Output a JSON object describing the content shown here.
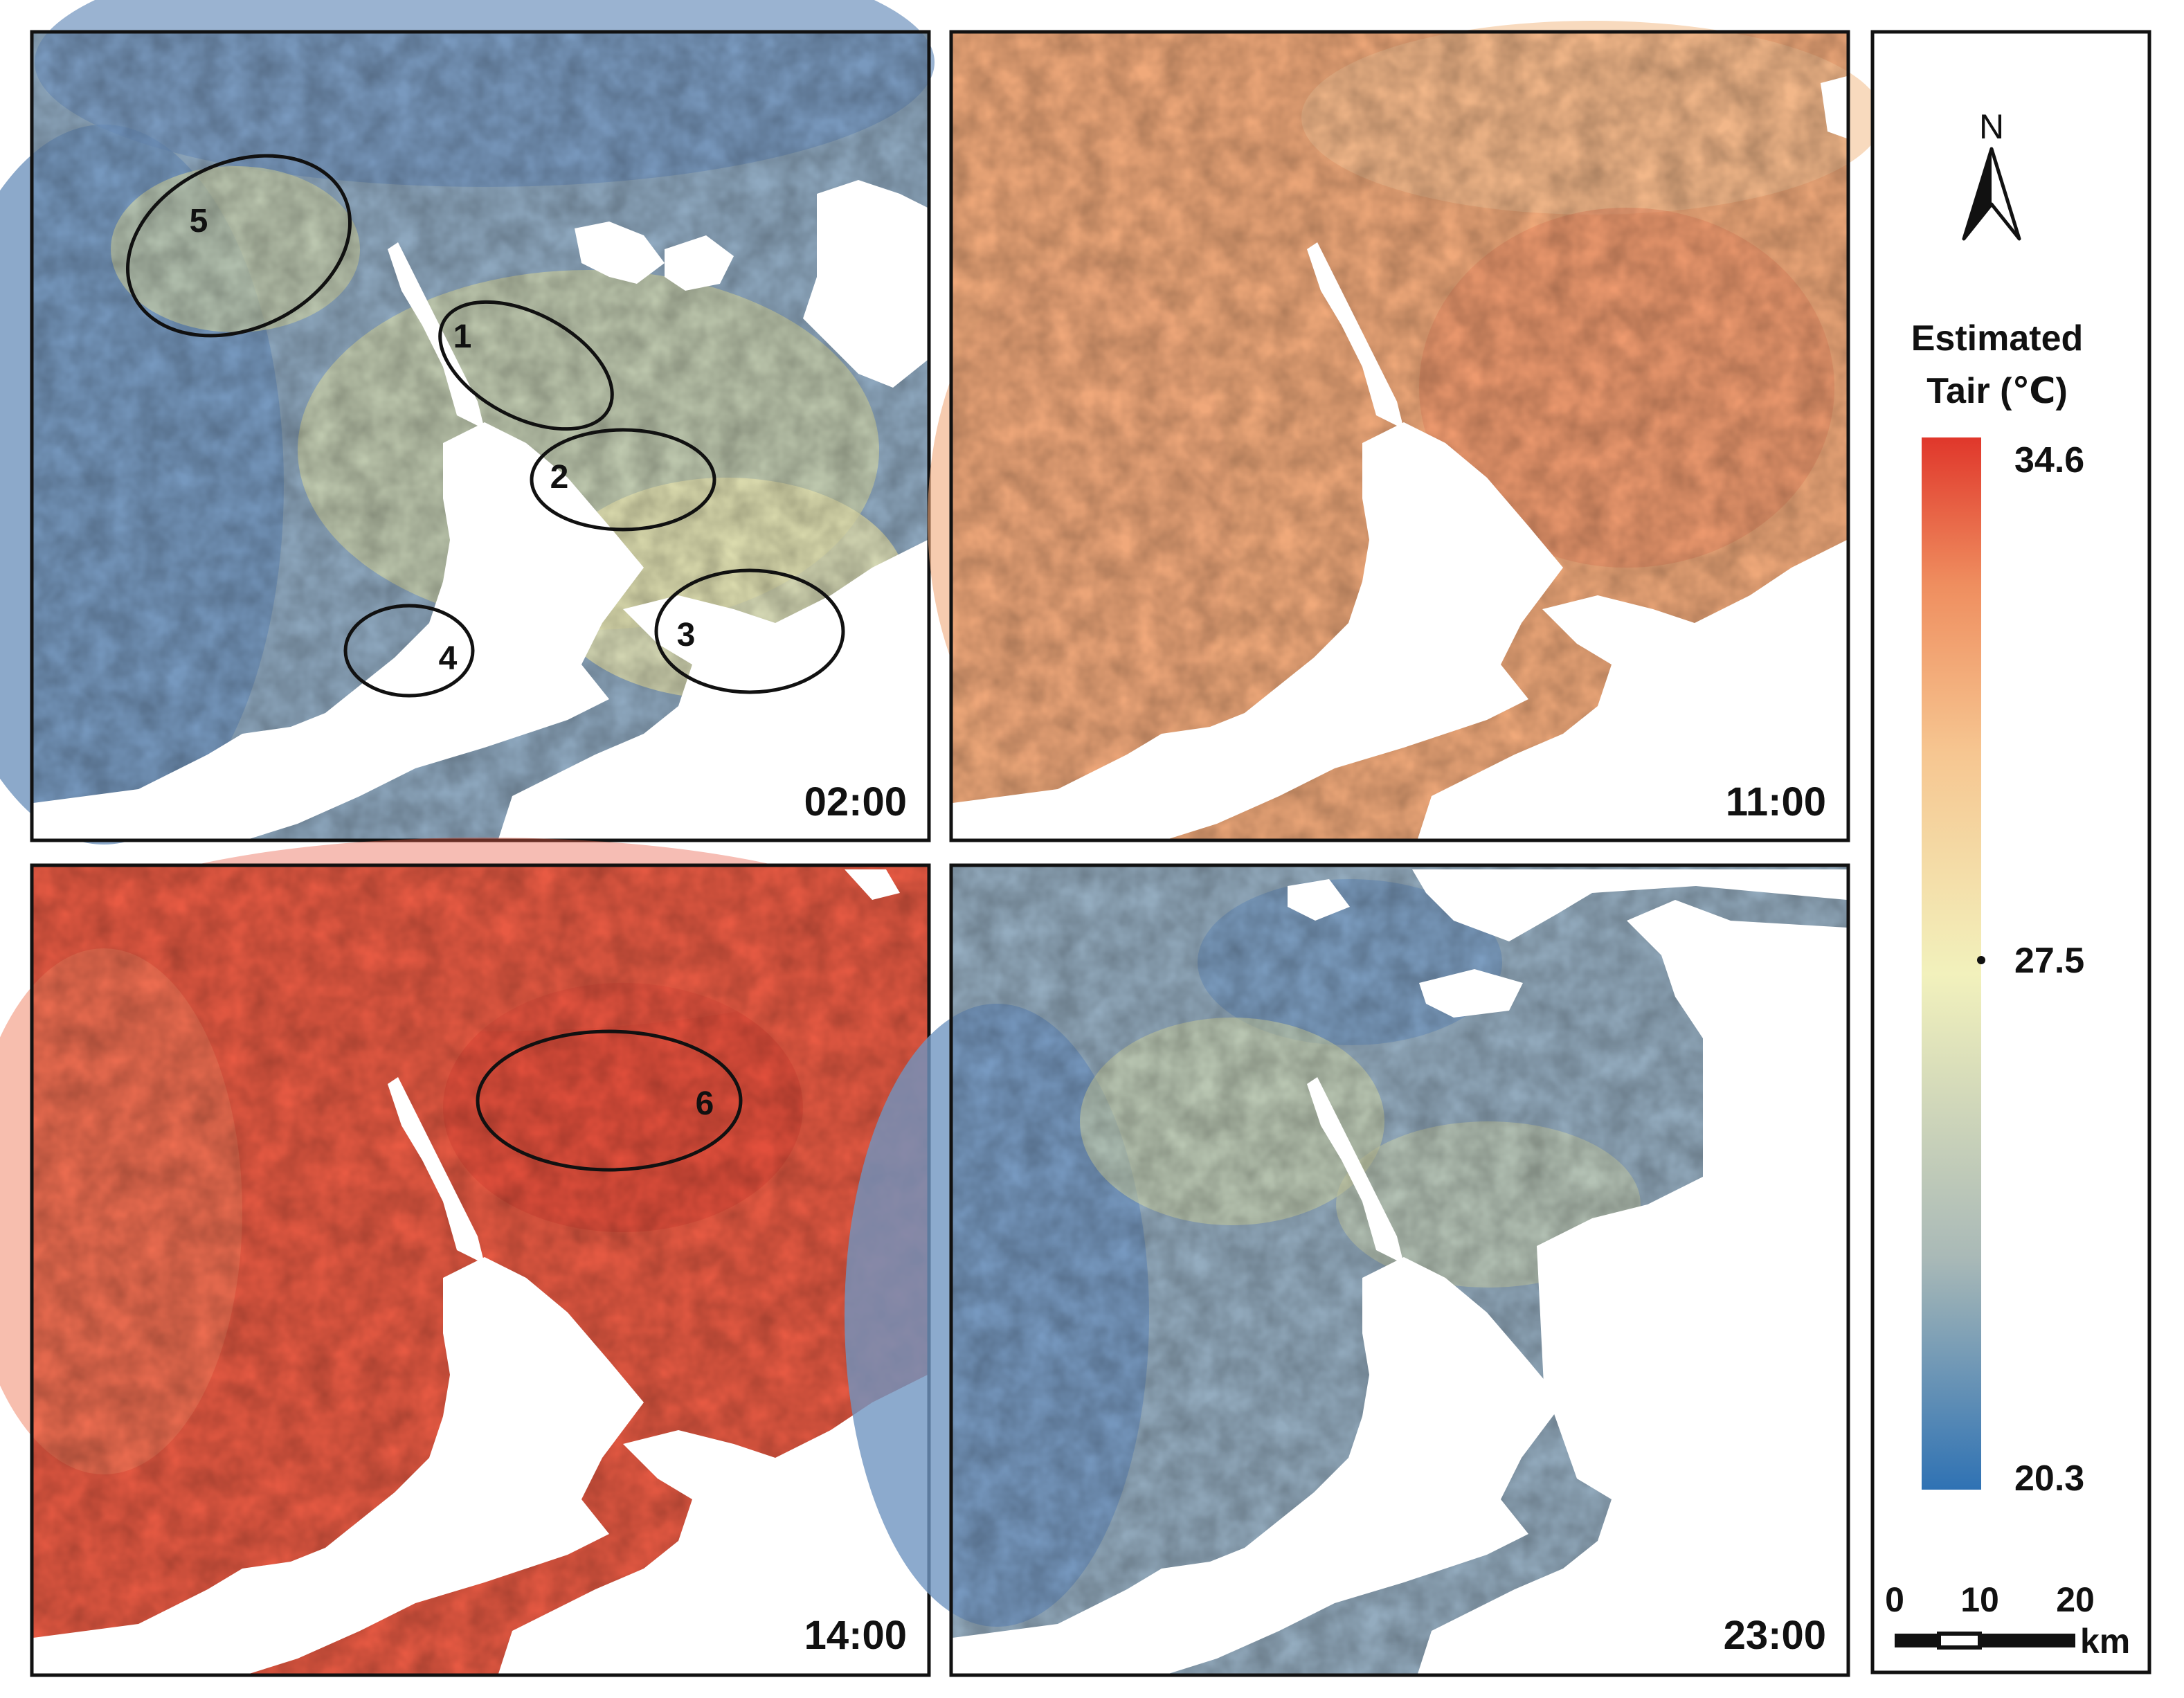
{
  "panels": [
    {
      "time": "02:00",
      "palette": [
        "#6f93bd",
        "#8fa9c0",
        "#aab9b4",
        "#cdd3a8",
        "#e6e4b0"
      ]
    },
    {
      "time": "11:00",
      "palette": [
        "#eea075",
        "#f0a97a",
        "#f2b584",
        "#eb8d65",
        "#f4c293"
      ]
    },
    {
      "time": "14:00",
      "palette": [
        "#ec6a4f",
        "#e85a43",
        "#f07e5d",
        "#e24c3a",
        "#f29270"
      ]
    },
    {
      "time": "23:00",
      "palette": [
        "#6f95c0",
        "#94acbf",
        "#b2c1b3",
        "#d3d8ab",
        "#e4e3b1"
      ]
    }
  ],
  "hotspots": [
    "1",
    "2",
    "3",
    "4",
    "5",
    "6"
  ],
  "legend": {
    "north": "N",
    "title_line1": "Estimated",
    "title_line2": "Tair (℃)",
    "max": "34.6",
    "mid": "27.5",
    "min": "20.3",
    "colors": {
      "max": "#e0372b",
      "high": "#ef8e5f",
      "upper": "#f6c691",
      "mid": "#f2f1bc",
      "lower": "#a9b9b7",
      "min": "#2f72b4"
    }
  },
  "scalebar": {
    "tick0": "0",
    "tick1": "10",
    "tick2": "20",
    "unit": "km"
  }
}
